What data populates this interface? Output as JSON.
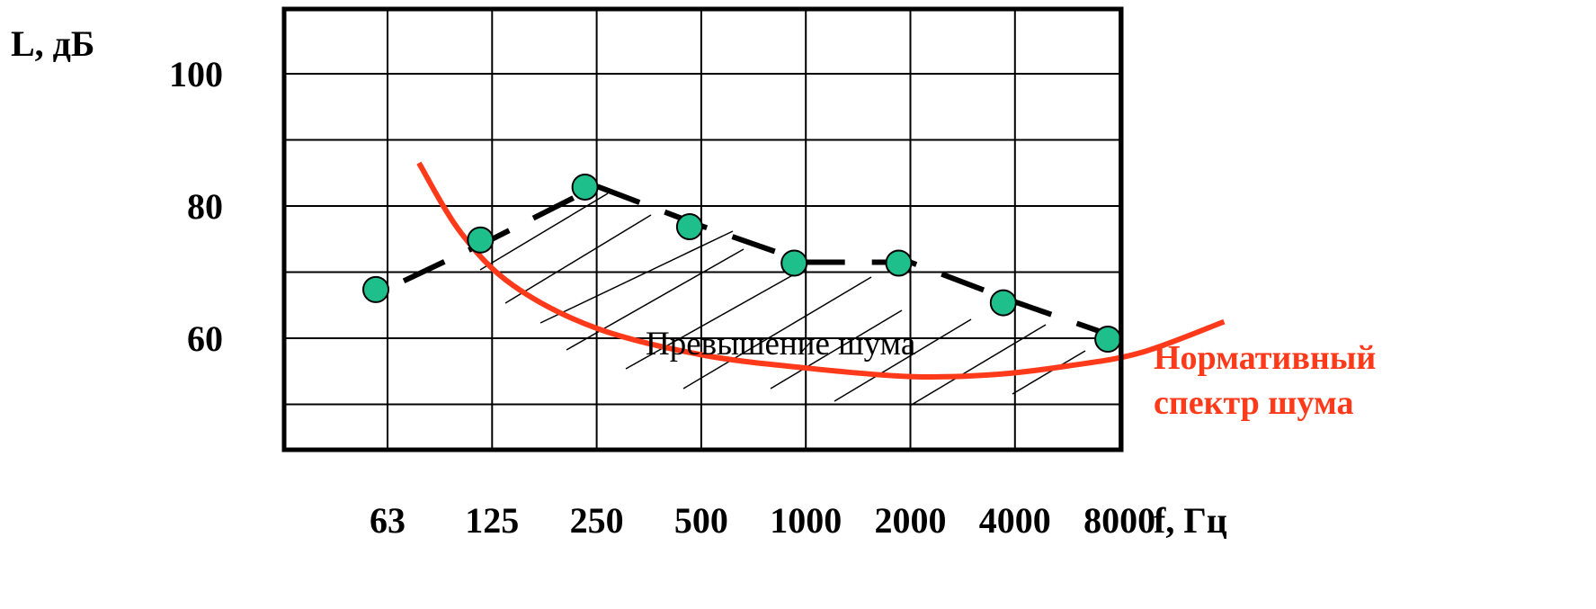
{
  "chart_data": {
    "type": "line",
    "title": "",
    "ylabel": "L, дБ",
    "xlabel": "f, Гц",
    "categories": [
      "63",
      "125",
      "250",
      "500",
      "1000",
      "2000",
      "4000",
      "8000"
    ],
    "y_ticks": [
      "100",
      "80",
      "60"
    ],
    "ylim": [
      50,
      110
    ],
    "grid": true,
    "series": [
      {
        "values": [
          67.5,
          75,
          83,
          77,
          71.5,
          71.5,
          65.5,
          60
        ],
        "style": "dashed",
        "markers": "circle",
        "color": "#000000",
        "marker_color": "#1fbf8c"
      },
      {
        "name": "Нормативный спектр шума",
        "x": [
          0.3,
          0.7,
          1.2,
          2.0,
          3.0,
          4.0,
          5.0,
          5.8,
          6.5,
          7.2,
          8.0
        ],
        "values": [
          86.5,
          76,
          68,
          61.5,
          57.5,
          55.5,
          54.2,
          54.5,
          55.8,
          57.8,
          62.5
        ],
        "color": "#ff3a1a"
      }
    ],
    "annotations": [
      "Превышение шума"
    ]
  }
}
